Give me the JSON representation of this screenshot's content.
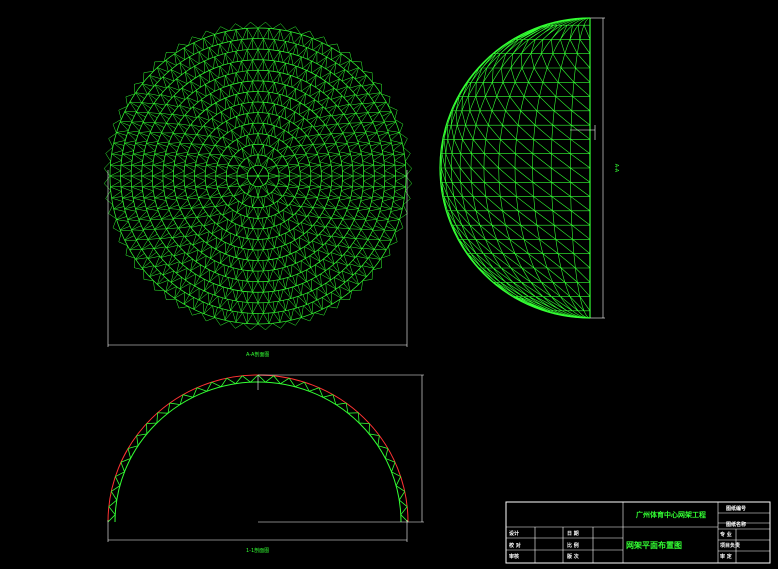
{
  "drawing": {
    "background": "#000000",
    "member_color": "#33ff33",
    "chord_color": "#ff3333",
    "line_color": "#ffffff",
    "plan_label": "A-A剖面图",
    "section_label": "1-1剖面图",
    "side_label": "A-A"
  },
  "title_block": {
    "project": "广州体育中心网架工程",
    "drawing_title": "网架平面布置图",
    "left_rows": [
      {
        "a": "设计",
        "b": "日 期"
      },
      {
        "a": "校 对",
        "b": "比 例"
      },
      {
        "a": "审核",
        "b": "版 次"
      }
    ],
    "right_rows": [
      "图纸编号",
      "",
      "图纸名称",
      "专 业",
      "项目负责",
      "审 定"
    ]
  }
}
